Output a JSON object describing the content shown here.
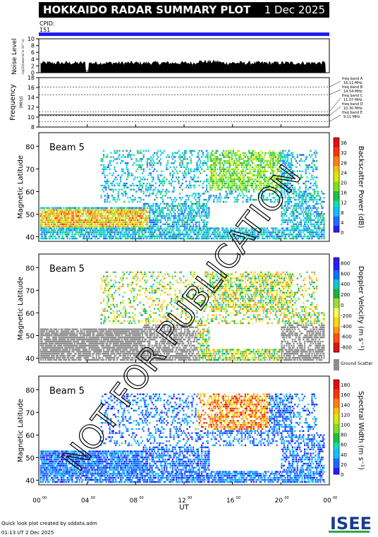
{
  "header": {
    "title": "HOKKAIDO RADAR SUMMARY PLOT",
    "date": "1 Dec 2025",
    "cpid_label": "CPID:",
    "cpid_value": "151"
  },
  "footer": {
    "line1": "Quick look plot created by sddata.adm",
    "line2": "01:13 UT  2 Dec 2025",
    "logo": "ISEE"
  },
  "watermark": "NOT FOR PUBLICATION",
  "colors": {
    "cpid_bar": "#1e1ef0",
    "ground_scatter": "#8c8c8c"
  },
  "chart_data": [
    {
      "type": "area",
      "ylabel": "Noise Level",
      "ylabel_sub": "log10(noise lvl in 10^-n)",
      "ylim": [
        0,
        10
      ],
      "yticks": [
        "10",
        "8",
        "6",
        "4",
        "2",
        "0"
      ]
    },
    {
      "type": "line",
      "ylabel": "Frequency",
      "ylabel_unit": "(MHz)",
      "ylim": [
        8,
        18
      ],
      "yticks": [
        "18",
        "16",
        "14",
        "12",
        "10",
        "8"
      ],
      "bands": [
        {
          "name": "freq band A",
          "value": "16.11 MHz",
          "mhz": 16.11
        },
        {
          "name": "freq band B",
          "value": "14.54 MHz",
          "mhz": 14.54
        },
        {
          "name": "freq band C",
          "value": "11.07 MHz",
          "mhz": 11.07
        },
        {
          "name": "freq band D",
          "value": "10.30 MHz",
          "mhz": 10.3
        },
        {
          "name": "freq band E",
          "value": "9.11 MHz",
          "mhz": 9.11
        }
      ]
    },
    {
      "type": "heatmap",
      "beam": "Beam  5",
      "ylabel": "Magnetic Latitude",
      "ylim": [
        38,
        86
      ],
      "yticks": [
        "80",
        "70",
        "60",
        "50",
        "40"
      ],
      "colorbar_label": "Backscatter Power (dB)",
      "colorbar_ticks": [
        "36",
        "32",
        "28",
        "24",
        "20",
        "16",
        "12",
        "8",
        "4",
        "0"
      ],
      "colorbar_range": [
        0,
        38
      ]
    },
    {
      "type": "heatmap",
      "beam": "Beam  5",
      "ylabel": "Magnetic Latitude",
      "ylim": [
        38,
        86
      ],
      "yticks": [
        "80",
        "70",
        "60",
        "50",
        "40"
      ],
      "colorbar_label": "Doppler Velocity (m s⁻¹)",
      "colorbar_ticks": [
        "800",
        "600",
        "400",
        "200",
        "0",
        "-200",
        "-400",
        "-600",
        "-800"
      ],
      "colorbar_range": [
        -900,
        900
      ],
      "ground_label": "Ground Scatter"
    },
    {
      "type": "heatmap",
      "beam": "Beam  5",
      "ylabel": "Magnetic Latitude",
      "ylim": [
        38,
        86
      ],
      "yticks": [
        "80",
        "70",
        "60",
        "50",
        "40"
      ],
      "colorbar_label": "Spectral Width (m s⁻¹)",
      "colorbar_ticks": [
        "180",
        "160",
        "140",
        "120",
        "100",
        "80",
        "60",
        "40",
        "20",
        "0"
      ],
      "colorbar_range": [
        0,
        190
      ]
    }
  ],
  "xaxis": {
    "label": "UT",
    "ticks": [
      "00",
      "04",
      "08",
      "12",
      "16",
      "20",
      "00"
    ],
    "tick_sup": "00",
    "range_hours": [
      0,
      24
    ]
  }
}
